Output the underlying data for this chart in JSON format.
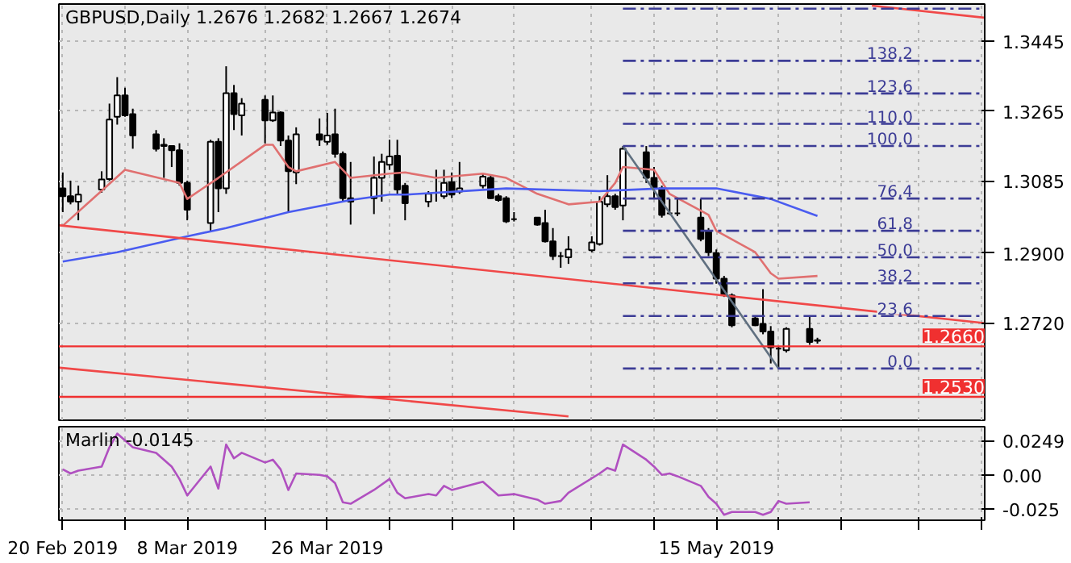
{
  "chart_data": [
    {
      "type": "candlestick",
      "title": "GBPUSD,Daily  1.2676 1.2682 1.2667 1.2674",
      "x": [
        "2019-02-20",
        "2019-02-21",
        "2019-02-22",
        "2019-02-25",
        "2019-02-26",
        "2019-02-27",
        "2019-02-28",
        "2019-03-01",
        "2019-03-04",
        "2019-03-05",
        "2019-03-06",
        "2019-03-07",
        "2019-03-08",
        "2019-03-11",
        "2019-03-12",
        "2019-03-13",
        "2019-03-14",
        "2019-03-15",
        "2019-03-18",
        "2019-03-19",
        "2019-03-20",
        "2019-03-21",
        "2019-03-22",
        "2019-03-25",
        "2019-03-26",
        "2019-03-27",
        "2019-03-28",
        "2019-03-29",
        "2019-04-01",
        "2019-04-02",
        "2019-04-03",
        "2019-04-04",
        "2019-04-05",
        "2019-04-08",
        "2019-04-09",
        "2019-04-10",
        "2019-04-11",
        "2019-04-12",
        "2019-04-15",
        "2019-04-16",
        "2019-04-17",
        "2019-04-18",
        "2019-04-19",
        "2019-04-22",
        "2019-04-23",
        "2019-04-24",
        "2019-04-25",
        "2019-04-26",
        "2019-04-29",
        "2019-04-30",
        "2019-05-01",
        "2019-05-02",
        "2019-05-03",
        "2019-05-06",
        "2019-05-07",
        "2019-05-08",
        "2019-05-09",
        "2019-05-10",
        "2019-05-13",
        "2019-05-14",
        "2019-05-15",
        "2019-05-16",
        "2019-05-17",
        "2019-05-20",
        "2019-05-21",
        "2019-05-22",
        "2019-05-23",
        "2019-05-24",
        "2019-05-27",
        "2019-05-28"
      ],
      "ohlc": [
        [
          1.3066,
          1.3107,
          1.3005,
          1.3046
        ],
        [
          1.3046,
          1.3086,
          1.3025,
          1.3032
        ],
        [
          1.3032,
          1.3073,
          1.2984,
          1.305
        ],
        [
          1.3063,
          1.311,
          1.3055,
          1.3089
        ],
        [
          1.309,
          1.3284,
          1.3086,
          1.3243
        ],
        [
          1.325,
          1.3352,
          1.323,
          1.3305
        ],
        [
          1.3305,
          1.3325,
          1.325,
          1.3254
        ],
        [
          1.3257,
          1.3271,
          1.3168,
          1.3202
        ],
        [
          1.3205,
          1.3216,
          1.3161,
          1.3168
        ],
        [
          1.3178,
          1.3195,
          1.3093,
          1.3175
        ],
        [
          1.3175,
          1.3175,
          1.3121,
          1.3164
        ],
        [
          1.3164,
          1.3182,
          1.3073,
          1.308
        ],
        [
          1.308,
          1.3086,
          1.2984,
          1.3011
        ],
        [
          1.2977,
          1.3191,
          1.2957,
          1.3186
        ],
        [
          1.3186,
          1.3195,
          1.3005,
          1.3066
        ],
        [
          1.3066,
          1.338,
          1.3052,
          1.3311
        ],
        [
          1.3311,
          1.3332,
          1.3216,
          1.3257
        ],
        [
          1.3254,
          1.3298,
          1.3202,
          1.3284
        ],
        [
          1.3294,
          1.3305,
          1.3182,
          1.3241
        ],
        [
          1.3241,
          1.3305,
          1.3237,
          1.3261
        ],
        [
          1.3261,
          1.3264,
          1.3175,
          1.3189
        ],
        [
          1.3189,
          1.3202,
          1.3005,
          1.311
        ],
        [
          1.3107,
          1.3223,
          1.3077,
          1.3205
        ],
        [
          1.3205,
          1.3246,
          1.3175,
          1.3191
        ],
        [
          1.3186,
          1.326,
          1.3178,
          1.3202
        ],
        [
          1.3205,
          1.3271,
          1.3145,
          1.3155
        ],
        [
          1.3155,
          1.3161,
          1.3032,
          1.3041
        ],
        [
          1.3041,
          1.3134,
          1.2973,
          1.3032
        ],
        [
          1.3041,
          1.3148,
          1.3,
          1.3093
        ],
        [
          1.3093,
          1.3155,
          1.3032,
          1.3134
        ],
        [
          1.3127,
          1.3191,
          1.3114,
          1.3148
        ],
        [
          1.315,
          1.3191,
          1.3052,
          1.3063
        ],
        [
          1.3073,
          1.308,
          1.2984,
          1.3028
        ],
        [
          1.3032,
          1.3059,
          1.3018,
          1.3052
        ],
        [
          1.3055,
          1.3114,
          1.3032,
          1.3055
        ],
        [
          1.3046,
          1.3114,
          1.3039,
          1.308
        ],
        [
          1.3082,
          1.3107,
          1.3041,
          1.305
        ],
        [
          1.3058,
          1.3134,
          1.3052,
          1.3066
        ],
        [
          1.3073,
          1.3104,
          1.3066,
          1.3096
        ],
        [
          1.3093,
          1.31,
          1.3039,
          1.3041
        ],
        [
          1.3046,
          1.3052,
          1.3032,
          1.3036
        ],
        [
          1.3041,
          1.3046,
          1.2977,
          1.2981
        ],
        [
          1.2987,
          1.3005,
          1.2981,
          1.2987
        ],
        [
          1.2991,
          1.2991,
          1.297,
          1.2973
        ],
        [
          1.2977,
          1.3011,
          1.2927,
          1.293
        ],
        [
          1.293,
          1.2964,
          1.2882,
          1.2892
        ],
        [
          1.2892,
          1.2902,
          1.2862,
          1.2892
        ],
        [
          1.2889,
          1.2943,
          1.2872,
          1.2909
        ],
        [
          1.2907,
          1.2943,
          1.2902,
          1.2927
        ],
        [
          1.2923,
          1.3046,
          1.2919,
          1.3032
        ],
        [
          1.3025,
          1.31,
          1.3018,
          1.3046
        ],
        [
          1.3046,
          1.3052,
          1.3011,
          1.3018
        ],
        [
          1.3022,
          1.3175,
          1.2984,
          1.3168
        ],
        [
          1.3159,
          1.3175,
          1.308,
          1.3093
        ],
        [
          1.3093,
          1.3121,
          1.3039,
          1.3066
        ],
        [
          1.3066,
          1.3073,
          1.2991,
          1.2998
        ],
        [
          1.3002,
          1.3039,
          1.2998,
          1.3002
        ],
        [
          1.3002,
          1.3039,
          1.2995,
          1.3002
        ],
        [
          1.2991,
          1.3039,
          1.293,
          1.2936
        ],
        [
          1.2957,
          1.2964,
          1.2892,
          1.2902
        ],
        [
          1.29,
          1.2909,
          1.2821,
          1.2834
        ],
        [
          1.2834,
          1.2841,
          1.2787,
          1.2793
        ],
        [
          1.2791,
          1.2796,
          1.2709,
          1.2714
        ],
        [
          1.2732,
          1.2739,
          1.2712,
          1.2714
        ],
        [
          1.2718,
          1.2807,
          1.2691,
          1.2698
        ],
        [
          1.2698,
          1.2712,
          1.2616,
          1.2657
        ],
        [
          1.2654,
          1.266,
          1.2603,
          1.2654
        ],
        [
          1.265,
          1.2709,
          1.2644,
          1.2705
        ],
        [
          1.2705,
          1.2739,
          1.2664,
          1.2671
        ],
        [
          1.2676,
          1.2682,
          1.2667,
          1.2674
        ]
      ],
      "series": [
        {
          "type": "line",
          "color": "#e07070",
          "line_style": "solid",
          "x": [
            "2019-02-20",
            "2019-02-28",
            "2019-03-07",
            "2019-03-08",
            "2019-03-12",
            "2019-03-18",
            "2019-03-19",
            "2019-03-21",
            "2019-03-22",
            "2019-03-27",
            "2019-03-29",
            "2019-04-03",
            "2019-04-05",
            "2019-04-09",
            "2019-04-15",
            "2019-04-18",
            "2019-04-22",
            "2019-04-26",
            "2019-04-30",
            "2019-05-02",
            "2019-05-03",
            "2019-05-07",
            "2019-05-09",
            "2019-05-14",
            "2019-05-15",
            "2019-05-20",
            "2019-05-22",
            "2019-05-23",
            "2019-05-28"
          ],
          "values": [
            1.297,
            1.3114,
            1.308,
            1.3039,
            1.3093,
            1.3178,
            1.3178,
            1.3121,
            1.311,
            1.3134,
            1.3093,
            1.3104,
            1.3107,
            1.3093,
            1.3104,
            1.3093,
            1.3052,
            1.3025,
            1.3032,
            1.308,
            1.3121,
            1.3114,
            1.3052,
            1.2998,
            1.2957,
            1.2902,
            1.2848,
            1.2834,
            1.2841
          ]
        },
        {
          "type": "line",
          "color": "#4a5cf0",
          "line_style": "solid",
          "x": [
            "2019-02-20",
            "2019-02-27",
            "2019-03-08",
            "2019-03-13",
            "2019-03-21",
            "2019-03-29",
            "2019-04-03",
            "2019-04-05",
            "2019-04-18",
            "2019-04-30",
            "2019-05-08",
            "2019-05-15",
            "2019-05-22",
            "2019-05-28"
          ],
          "values": [
            1.2878,
            1.2902,
            1.2943,
            1.2964,
            1.3005,
            1.3036,
            1.305,
            1.305,
            1.3066,
            1.3059,
            1.3066,
            1.3066,
            1.3039,
            1.2995
          ]
        },
        {
          "type": "line",
          "color": "#f04848",
          "line_style": "solid",
          "x": [
            "2019-02-19T14:24",
            "2019-06-18T09:36"
          ],
          "values": [
            1.2971,
            1.272
          ]
        },
        {
          "type": "line",
          "color": "#f04848",
          "line_style": "solid",
          "x": [
            "2019-02-19T14:24",
            "2019-04-26"
          ],
          "values": [
            1.2605,
            1.248
          ]
        },
        {
          "type": "line",
          "color": "#f04848",
          "line_style": "solid",
          "x": [
            "2019-06-04",
            "2019-06-18T09:36"
          ],
          "values": [
            1.3536,
            1.3505
          ]
        },
        {
          "type": "line",
          "color": "#607080",
          "line_style": "solid",
          "x": [
            "2019-05-03",
            "2019-05-23"
          ],
          "values": [
            1.3175,
            1.2603
          ]
        },
        {
          "type": "line",
          "color": "#3c3c96",
          "line_style": "dashed",
          "x": [
            "2019-05-03",
            "2019-06-18T09:36"
          ],
          "values": [
            1.3528,
            1.3528
          ]
        },
        {
          "type": "line",
          "name": "138,2",
          "color": "#3c3c96",
          "line_style": "dashed",
          "x": [
            "2019-05-03",
            "2019-06-18T09:36"
          ],
          "values": [
            1.3394,
            1.3394
          ]
        },
        {
          "type": "line",
          "name": "123,6",
          "color": "#3c3c96",
          "line_style": "dashed",
          "x": [
            "2019-05-03",
            "2019-06-18T09:36"
          ],
          "values": [
            1.331,
            1.331
          ]
        },
        {
          "type": "line",
          "name": "110,0",
          "color": "#3c3c96",
          "line_style": "dashed",
          "x": [
            "2019-05-03",
            "2019-06-18T09:36"
          ],
          "values": [
            1.3232,
            1.3232
          ]
        },
        {
          "type": "line",
          "name": "100,0",
          "color": "#3c3c96",
          "line_style": "dashed",
          "x": [
            "2019-05-03",
            "2019-06-18T09:36"
          ],
          "values": [
            1.3175,
            1.3175
          ]
        },
        {
          "type": "line",
          "name": "76,4",
          "color": "#3c3c96",
          "line_style": "dashed",
          "x": [
            "2019-05-03",
            "2019-06-18T09:36"
          ],
          "values": [
            1.304,
            1.304
          ]
        },
        {
          "type": "line",
          "name": "61,8",
          "color": "#3c3c96",
          "line_style": "dashed",
          "x": [
            "2019-05-03",
            "2019-06-18T09:36"
          ],
          "values": [
            1.2957,
            1.2957
          ]
        },
        {
          "type": "line",
          "name": "50,0",
          "color": "#3c3c96",
          "line_style": "dashed",
          "x": [
            "2019-05-03",
            "2019-06-18T09:36"
          ],
          "values": [
            1.2889,
            1.2889
          ]
        },
        {
          "type": "line",
          "name": "38,2",
          "color": "#3c3c96",
          "line_style": "dashed",
          "x": [
            "2019-05-03",
            "2019-06-18T09:36"
          ],
          "values": [
            1.2822,
            1.2822
          ]
        },
        {
          "type": "line",
          "name": "23,6",
          "color": "#3c3c96",
          "line_style": "dashed",
          "x": [
            "2019-05-03",
            "2019-06-18T09:36"
          ],
          "values": [
            1.2738,
            1.2738
          ]
        },
        {
          "type": "line",
          "name": "0.0",
          "color": "#3c3c96",
          "line_style": "dashed",
          "x": [
            "2019-05-03",
            "2019-06-18T09:36"
          ],
          "values": [
            1.2603,
            1.2603
          ]
        }
      ],
      "ref_lines": [
        {
          "axis": "y",
          "value": 1.266,
          "label": "1.2660",
          "color": "#f03030"
        },
        {
          "axis": "y",
          "value": 1.253,
          "label": "1.2530",
          "color": "#f03030"
        }
      ],
      "xlim": [
        "2019-02-19T12:00",
        "2019-06-18T12:00"
      ],
      "xticks": [
        "2019-02-20",
        "2019-02-28",
        "2019-03-08",
        "2019-03-18",
        "2019-03-26",
        "2019-04-03",
        "2019-04-11",
        "2019-04-19",
        "2019-04-29",
        "2019-05-07",
        "2019-05-15",
        "2019-05-23",
        "2019-05-31",
        "2019-06-10",
        "2019-06-18"
      ],
      "ylim": [
        1.247,
        1.354
      ],
      "yticks": [
        1.3445,
        1.3265,
        1.3085,
        {
          "value": 1.29,
          "label": "1.2900"
        },
        {
          "value": 1.272,
          "label": "1.2720"
        }
      ],
      "grid": true,
      "tick_labels": "y"
    },
    {
      "type": "line",
      "title": "Marlin -0.0145",
      "color": "#b050c0",
      "x": [
        "2019-02-20",
        "2019-02-21",
        "2019-02-22",
        "2019-02-25",
        "2019-02-26",
        "2019-02-27",
        "2019-02-28",
        "2019-03-01",
        "2019-03-04",
        "2019-03-05",
        "2019-03-06",
        "2019-03-07",
        "2019-03-08",
        "2019-03-11",
        "2019-03-12",
        "2019-03-13",
        "2019-03-14",
        "2019-03-15",
        "2019-03-18",
        "2019-03-19",
        "2019-03-20",
        "2019-03-21",
        "2019-03-22",
        "2019-03-25",
        "2019-03-26",
        "2019-03-27",
        "2019-03-28",
        "2019-03-29",
        "2019-04-01",
        "2019-04-03",
        "2019-04-04",
        "2019-04-05",
        "2019-04-08",
        "2019-04-09",
        "2019-04-10",
        "2019-04-11",
        "2019-04-15",
        "2019-04-16",
        "2019-04-17",
        "2019-04-19",
        "2019-04-22",
        "2019-04-23",
        "2019-04-25",
        "2019-04-26",
        "2019-04-30",
        "2019-05-01",
        "2019-05-02",
        "2019-05-03",
        "2019-05-06",
        "2019-05-07",
        "2019-05-08",
        "2019-05-09",
        "2019-05-10",
        "2019-05-13",
        "2019-05-14",
        "2019-05-15",
        "2019-05-16",
        "2019-05-17",
        "2019-05-20",
        "2019-05-21",
        "2019-05-22",
        "2019-05-23",
        "2019-05-24",
        "2019-05-27"
      ],
      "values": [
        0.004,
        0.001,
        0.003,
        0.006,
        0.02,
        0.03,
        0.025,
        0.02,
        0.016,
        0.011,
        0.006,
        -0.003,
        -0.015,
        0.006,
        -0.01,
        0.022,
        0.012,
        0.016,
        0.009,
        0.011,
        0.004,
        -0.011,
        0.001,
        0.0,
        -0.001,
        -0.006,
        -0.02,
        -0.021,
        -0.011,
        -0.003,
        -0.013,
        -0.017,
        -0.014,
        -0.015,
        -0.008,
        -0.011,
        -0.005,
        -0.01,
        -0.015,
        -0.014,
        -0.018,
        -0.021,
        -0.019,
        -0.013,
        0.001,
        0.005,
        0.003,
        0.022,
        0.011,
        0.006,
        0.0,
        0.001,
        -0.001,
        -0.008,
        -0.016,
        -0.021,
        -0.029,
        -0.027,
        -0.027,
        -0.029,
        -0.027,
        -0.019,
        -0.021,
        -0.02
      ],
      "xlim": [
        "2019-02-19T12:00",
        "2019-06-18T12:00"
      ],
      "xticks": [
        {
          "value": "2019-02-20",
          "label": "20 Feb 2019"
        },
        {
          "value": "2019-02-28",
          "label": null
        },
        {
          "value": "2019-03-08",
          "label": "8 Mar 2019"
        },
        {
          "value": "2019-03-18",
          "label": null
        },
        {
          "value": "2019-03-26",
          "label": "26 Mar 2019"
        },
        {
          "value": "2019-04-03",
          "label": null
        },
        {
          "value": "2019-04-11",
          "label": null
        },
        {
          "value": "2019-04-19",
          "label": null
        },
        {
          "value": "2019-04-29",
          "label": null
        },
        {
          "value": "2019-05-07",
          "label": null
        },
        {
          "value": "2019-05-15",
          "label": "15 May 2019"
        },
        {
          "value": "2019-05-23",
          "label": null
        },
        {
          "value": "2019-05-31",
          "label": null
        },
        {
          "value": "2019-06-10",
          "label": null
        },
        {
          "value": "2019-06-18",
          "label": null
        }
      ],
      "ylim": [
        -0.033,
        0.035
      ],
      "yticks": [
        {
          "value": 0.0249,
          "label": "0.0249"
        },
        {
          "value": 0,
          "label": "0.00"
        },
        {
          "value": -0.025,
          "label": "-0.025"
        }
      ],
      "grid": true
    }
  ]
}
